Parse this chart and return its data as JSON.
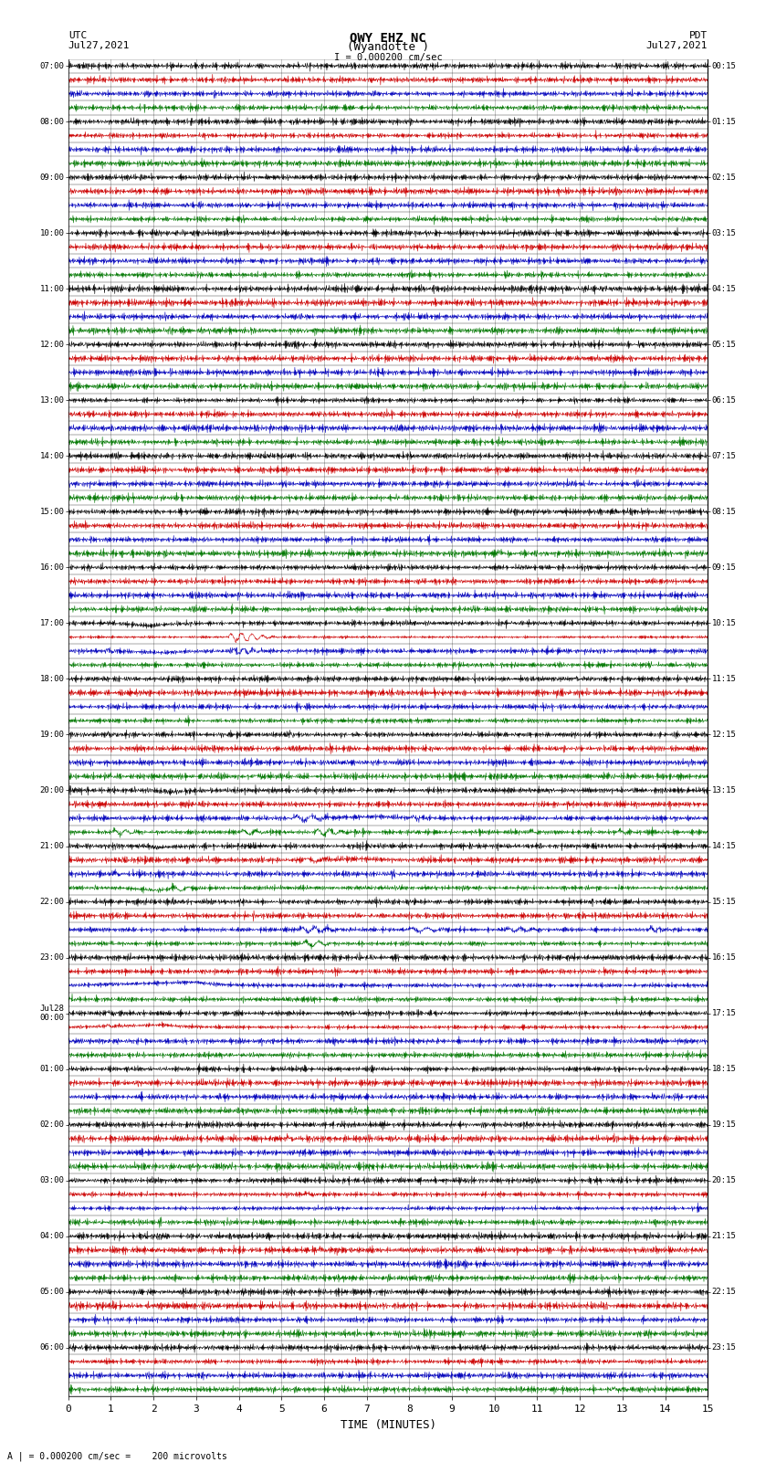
{
  "title_line1": "QWY EHZ NC",
  "title_line2": "(Wyandotte )",
  "scale_text": "I = 0.000200 cm/sec",
  "footer_text": "A | = 0.000200 cm/sec =    200 microvolts",
  "left_header_line1": "UTC",
  "left_header_line2": "Jul27,2021",
  "right_header_line1": "PDT",
  "right_header_line2": "Jul27,2021",
  "xlabel": "TIME (MINUTES)",
  "bg_color": "#ffffff",
  "trace_colors": [
    "#000000",
    "#cc0000",
    "#0000bb",
    "#007700"
  ],
  "grid_color": "#aaaaaa",
  "hline_color": "#000000",
  "text_color": "#000000",
  "fig_width": 8.5,
  "fig_height": 16.13,
  "dpi": 100,
  "minutes": 15,
  "left_labels": [
    "07:00",
    "",
    "",
    "",
    "08:00",
    "",
    "",
    "",
    "09:00",
    "",
    "",
    "",
    "10:00",
    "",
    "",
    "",
    "11:00",
    "",
    "",
    "",
    "12:00",
    "",
    "",
    "",
    "13:00",
    "",
    "",
    "",
    "14:00",
    "",
    "",
    "",
    "15:00",
    "",
    "",
    "",
    "16:00",
    "",
    "",
    "",
    "17:00",
    "",
    "",
    "",
    "18:00",
    "",
    "",
    "",
    "19:00",
    "",
    "",
    "",
    "20:00",
    "",
    "",
    "",
    "21:00",
    "",
    "",
    "",
    "22:00",
    "",
    "",
    "",
    "23:00",
    "",
    "",
    "",
    "Jul28\n00:00",
    "",
    "",
    "",
    "01:00",
    "",
    "",
    "",
    "02:00",
    "",
    "",
    "",
    "03:00",
    "",
    "",
    "",
    "04:00",
    "",
    "",
    "",
    "05:00",
    "",
    "",
    "",
    "06:00",
    "",
    "",
    ""
  ],
  "right_labels": [
    "00:15",
    "",
    "",
    "",
    "01:15",
    "",
    "",
    "",
    "02:15",
    "",
    "",
    "",
    "03:15",
    "",
    "",
    "",
    "04:15",
    "",
    "",
    "",
    "05:15",
    "",
    "",
    "",
    "06:15",
    "",
    "",
    "",
    "07:15",
    "",
    "",
    "",
    "08:15",
    "",
    "",
    "",
    "09:15",
    "",
    "",
    "",
    "10:15",
    "",
    "",
    "",
    "11:15",
    "",
    "",
    "",
    "12:15",
    "",
    "",
    "",
    "13:15",
    "",
    "",
    "",
    "14:15",
    "",
    "",
    "",
    "15:15",
    "",
    "",
    "",
    "16:15",
    "",
    "",
    "",
    "17:15",
    "",
    "",
    "",
    "18:15",
    "",
    "",
    "",
    "19:15",
    "",
    "",
    "",
    "20:15",
    "",
    "",
    "",
    "21:15",
    "",
    "",
    "",
    "22:15",
    "",
    "",
    "",
    "23:15",
    "",
    "",
    ""
  ],
  "noise_seed": 7,
  "base_noise": 0.012,
  "lw": 0.4
}
